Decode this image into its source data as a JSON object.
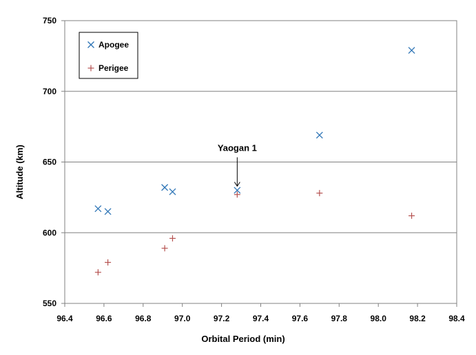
{
  "chart_data": {
    "type": "scatter",
    "title": "",
    "xlabel": "Orbital Period  (min)",
    "ylabel": "Altitude  (km)",
    "xlim": [
      96.4,
      98.4
    ],
    "ylim": [
      550,
      750
    ],
    "xticks": [
      "96.4",
      "96.6",
      "96.8",
      "97.0",
      "97.2",
      "97.4",
      "97.6",
      "97.8",
      "98.0",
      "98.2",
      "98.4"
    ],
    "yticks": [
      "550",
      "600",
      "650",
      "700",
      "750"
    ],
    "grid": "horizontal",
    "legend_position": "top-left",
    "series": [
      {
        "name": "Apogee",
        "marker": "x",
        "color": "#2E75B6",
        "points": [
          {
            "x": 96.57,
            "y": 617
          },
          {
            "x": 96.62,
            "y": 615
          },
          {
            "x": 96.91,
            "y": 632
          },
          {
            "x": 96.95,
            "y": 629
          },
          {
            "x": 97.28,
            "y": 630
          },
          {
            "x": 97.7,
            "y": 669
          },
          {
            "x": 98.17,
            "y": 729
          }
        ]
      },
      {
        "name": "Perigee",
        "marker": "+",
        "color": "#B5514F",
        "points": [
          {
            "x": 96.57,
            "y": 572
          },
          {
            "x": 96.62,
            "y": 579
          },
          {
            "x": 96.91,
            "y": 589
          },
          {
            "x": 96.95,
            "y": 596
          },
          {
            "x": 97.28,
            "y": 627
          },
          {
            "x": 97.7,
            "y": 628
          },
          {
            "x": 98.17,
            "y": 612
          }
        ]
      }
    ],
    "annotations": [
      {
        "text": "Yaogan 1",
        "x": 97.28,
        "y": 630
      }
    ]
  }
}
